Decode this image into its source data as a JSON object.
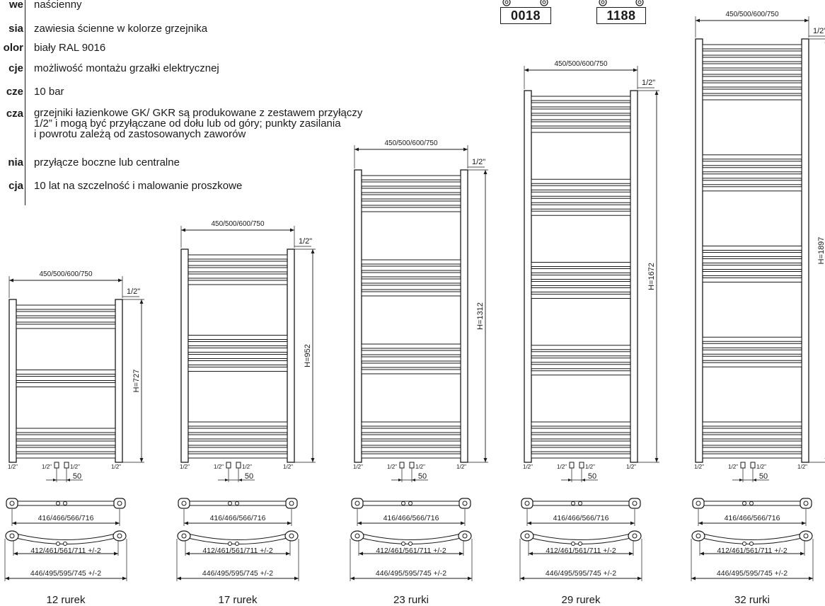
{
  "specs": [
    {
      "label": "we",
      "value": "naścienny"
    },
    {
      "label": "sia",
      "value": "zawiesia ścienne w kolorze grzejnika"
    },
    {
      "label": "olor",
      "value": "biały RAL 9016"
    },
    {
      "label": "cje",
      "value": "możliwość montażu grzałki elektrycznej"
    },
    {
      "label": "cze",
      "value": "10 bar"
    },
    {
      "label": "cza",
      "value": "grzejniki łazienkowe GK/ GKR są produkowane z zestawem przyłączy\n1/2” i mogą być przyłączane od dołu lub od góry; punkty zasilania\ni powrotu zależą od zastosowanych zaworów"
    },
    {
      "label": "nia",
      "value": "przyłącze boczne lub centralne"
    },
    {
      "label": "cja",
      "value": "10 lat na szczelność i malowanie proszkowe"
    }
  ],
  "codes": [
    "0018",
    "1188"
  ],
  "width_label": "450/500/600/750",
  "thread_label": "1/2\"",
  "spacing_label": "50",
  "straight_span_label": "416/466/566/716",
  "curved_inner_label": "412/461/561/711 +/-2",
  "curved_outer_label": "446/495/595/745 +/-2",
  "radiators": [
    {
      "height_label": "H=727",
      "caption": "12 rurek",
      "tubes": 12
    },
    {
      "height_label": "H=952",
      "caption": "17 rurek",
      "tubes": 17
    },
    {
      "height_label": "H=1312",
      "caption": "23 rurki",
      "tubes": 23
    },
    {
      "height_label": "H=1672",
      "caption": "29 rurek",
      "tubes": 29
    },
    {
      "height_label": "H=1897",
      "caption": "32 rurki",
      "tubes": 32
    }
  ]
}
